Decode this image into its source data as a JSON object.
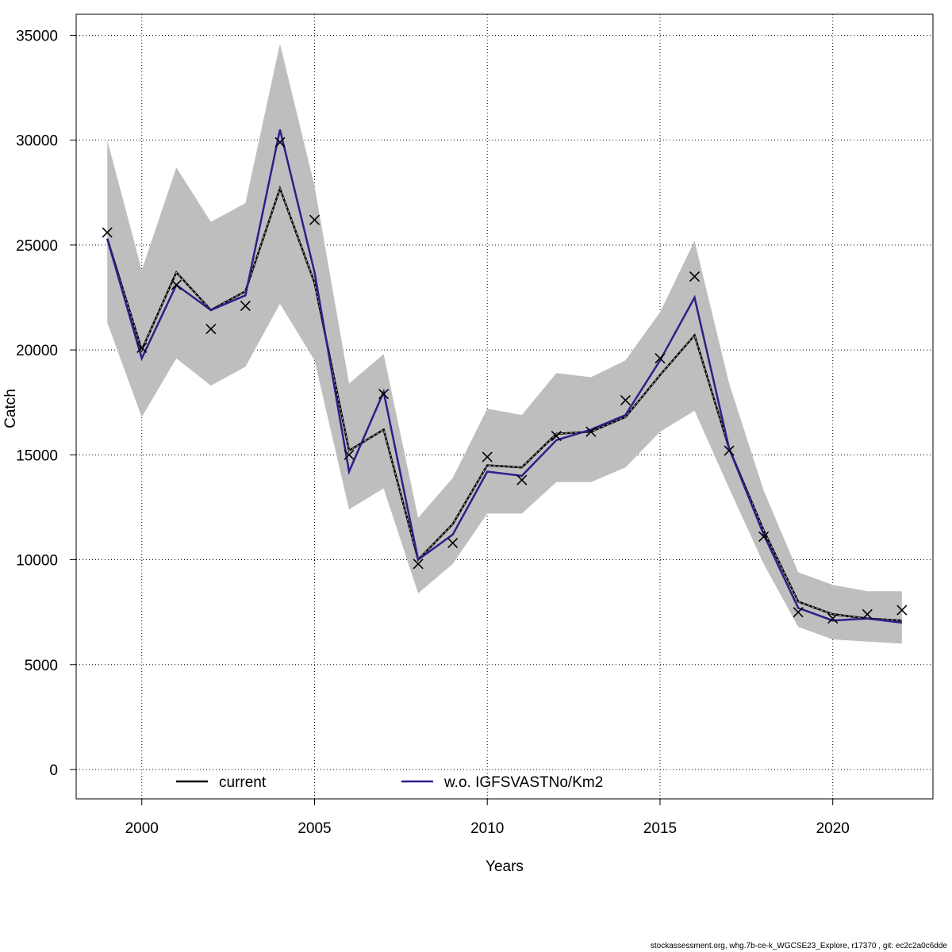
{
  "chart_data": {
    "type": "line",
    "xlabel": "Years",
    "ylabel": "Catch",
    "xlim": [
      1998.1,
      2022.9
    ],
    "ylim": [
      -1400,
      36000
    ],
    "x_ticks": [
      2000,
      2005,
      2010,
      2015,
      2020
    ],
    "y_ticks": [
      0,
      5000,
      10000,
      15000,
      20000,
      25000,
      30000,
      35000
    ],
    "grid": true,
    "legend_position": "bottom",
    "x": [
      1999,
      2000,
      2001,
      2002,
      2003,
      2004,
      2005,
      2006,
      2007,
      2008,
      2009,
      2010,
      2011,
      2012,
      2013,
      2014,
      2015,
      2016,
      2017,
      2018,
      2019,
      2020,
      2021,
      2022
    ],
    "series": [
      {
        "name": "current",
        "color": "#000000",
        "values": [
          25300,
          20000,
          23700,
          21900,
          22800,
          27700,
          23200,
          15200,
          16200,
          10000,
          11700,
          14500,
          14400,
          16000,
          16100,
          16800,
          18800,
          20700,
          15300,
          11400,
          8000,
          7400,
          7200,
          7100
        ]
      },
      {
        "name": "w.o. IGFSVASTNo/Km2",
        "color": "#2b1f8a",
        "values": [
          25300,
          19600,
          23100,
          21900,
          22600,
          30500,
          23700,
          14200,
          18000,
          10000,
          11200,
          14200,
          14000,
          15700,
          16200,
          16900,
          19500,
          22500,
          15300,
          11200,
          7700,
          7100,
          7200,
          7000
        ]
      }
    ],
    "band": {
      "color": "#bebebe",
      "lower": [
        21300,
        16800,
        19600,
        18300,
        19200,
        22200,
        19500,
        12400,
        13400,
        8400,
        9800,
        12200,
        12200,
        13700,
        13700,
        14400,
        16100,
        17100,
        13400,
        9800,
        6800,
        6200,
        6100,
        6000
      ],
      "upper": [
        30000,
        23800,
        28700,
        26100,
        27000,
        34600,
        27800,
        18400,
        19800,
        12000,
        13900,
        17200,
        16900,
        18900,
        18700,
        19500,
        21800,
        25200,
        18400,
        13300,
        9400,
        8800,
        8500,
        8500
      ]
    },
    "observations": {
      "marker": "x",
      "values": [
        25600,
        20100,
        23100,
        21000,
        22100,
        29900,
        26200,
        15000,
        17900,
        9800,
        10800,
        14900,
        13800,
        15900,
        16100,
        17600,
        19600,
        23500,
        15200,
        11100,
        7500,
        7200,
        7400,
        7600
      ]
    }
  },
  "footer": "stockassessment.org, whg.7b-ce-k_WGCSE23_Explore, r17370 , git: ec2c2a0c6dde"
}
